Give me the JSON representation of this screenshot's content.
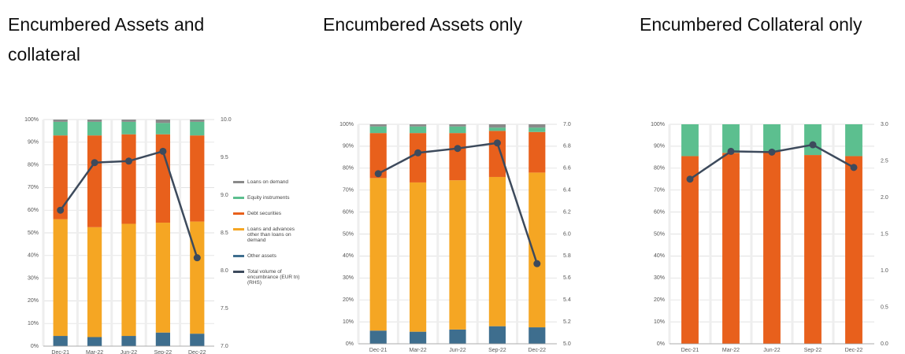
{
  "chart_data": [
    {
      "type": "bar",
      "title": "Encumbered Assets and collateral",
      "stacked": true,
      "legend": "right",
      "grid": true,
      "categories": [
        "Dec-21",
        "Mar-22",
        "Jun-22",
        "Sep-22",
        "Dec-22"
      ],
      "ylim": [
        0,
        100
      ],
      "yticks": [
        {
          "value": 0,
          "label": "0%"
        },
        {
          "value": 10,
          "label": "10%"
        },
        {
          "value": 20,
          "label": "20%"
        },
        {
          "value": 30,
          "label": "30%"
        },
        {
          "value": 40,
          "label": "40%"
        },
        {
          "value": 50,
          "label": "50%"
        },
        {
          "value": 60,
          "label": "60%"
        },
        {
          "value": 70,
          "label": "70%"
        },
        {
          "value": 80,
          "label": "80%"
        },
        {
          "value": 90,
          "label": "90%"
        },
        {
          "value": 100,
          "label": "100%"
        }
      ],
      "y2lim": [
        7,
        10
      ],
      "y2ticks": [
        {
          "value": 7,
          "label": "7.0"
        },
        {
          "value": 7.5,
          "label": "7.5"
        },
        {
          "value": 8,
          "label": "8.0"
        },
        {
          "value": 8.5,
          "label": "8.5"
        },
        {
          "value": 9,
          "label": "9.0"
        },
        {
          "value": 9.5,
          "label": "9.5"
        },
        {
          "value": 10,
          "label": "10.0"
        }
      ],
      "series": [
        {
          "name": "Other assets",
          "color": "#3e6e8e",
          "values": [
            4.5,
            4,
            4.5,
            6,
            5.5
          ]
        },
        {
          "name": "Loans and advances other than loans on demand",
          "color": "#f5a623",
          "values": [
            51.5,
            48.5,
            49.5,
            48.5,
            49.5
          ]
        },
        {
          "name": "Debt securities",
          "color": "#e8601c",
          "values": [
            37,
            40.5,
            39.5,
            39,
            38
          ]
        },
        {
          "name": "Equity instruments",
          "color": "#5cbf8f",
          "values": [
            6,
            6,
            5.5,
            5,
            6
          ]
        },
        {
          "name": "Loans on demand",
          "color": "#8a8a8a",
          "values": [
            1,
            1,
            1,
            1.5,
            1
          ]
        },
        {
          "name": "Total volume of encumbrance (EUR tn) (RHS)",
          "color": "#3d4a5c",
          "type": "line",
          "axis": "y2",
          "values": [
            8.8,
            9.43,
            9.45,
            9.58,
            8.17
          ]
        }
      ]
    },
    {
      "type": "bar",
      "title": "Encumbered Assets only",
      "stacked": true,
      "grid": true,
      "categories": [
        "Dec-21",
        "Mar-22",
        "Jun-22",
        "Sep-22",
        "Dec-22"
      ],
      "ylim": [
        0,
        100
      ],
      "yticks": [
        {
          "value": 0,
          "label": "0%"
        },
        {
          "value": 10,
          "label": "10%"
        },
        {
          "value": 20,
          "label": "20%"
        },
        {
          "value": 30,
          "label": "30%"
        },
        {
          "value": 40,
          "label": "40%"
        },
        {
          "value": 50,
          "label": "50%"
        },
        {
          "value": 60,
          "label": "60%"
        },
        {
          "value": 70,
          "label": "70%"
        },
        {
          "value": 80,
          "label": "80%"
        },
        {
          "value": 90,
          "label": "90%"
        },
        {
          "value": 100,
          "label": "100%"
        }
      ],
      "y2lim": [
        5,
        7
      ],
      "y2ticks": [
        {
          "value": 5,
          "label": "5.0"
        },
        5.2,
        5.4,
        5.6,
        5.8,
        {
          "value": 6,
          "label": "6.0"
        },
        6.2,
        6.4,
        6.6,
        6.8,
        {
          "value": 7,
          "label": "7.0"
        }
      ],
      "series": [
        {
          "color": "#3e6e8e",
          "values": [
            6,
            5.5,
            6.5,
            8,
            7.5
          ]
        },
        {
          "color": "#f5a623",
          "values": [
            69.5,
            68,
            68,
            68,
            70.5
          ]
        },
        {
          "color": "#e8601c",
          "values": [
            20.5,
            22.5,
            21.5,
            21,
            18.5
          ]
        },
        {
          "color": "#5cbf8f",
          "values": [
            3,
            3,
            3,
            1.5,
            2
          ]
        },
        {
          "color": "#8a8a8a",
          "values": [
            1,
            1,
            1,
            1.5,
            1.5
          ]
        },
        {
          "color": "#3d4a5c",
          "type": "line",
          "axis": "y2",
          "values": [
            6.55,
            6.74,
            6.78,
            6.83,
            5.73
          ]
        }
      ]
    },
    {
      "type": "bar",
      "title": "Encumbered Collateral only",
      "stacked": true,
      "grid": true,
      "categories": [
        "Dec-21",
        "Mar-22",
        "Jun-22",
        "Sep-22",
        "Dec-22"
      ],
      "ylim": [
        0,
        100
      ],
      "yticks": [
        {
          "value": 0,
          "label": "0%"
        },
        {
          "value": 10,
          "label": "10%"
        },
        {
          "value": 20,
          "label": "20%"
        },
        {
          "value": 30,
          "label": "30%"
        },
        {
          "value": 40,
          "label": "40%"
        },
        {
          "value": 50,
          "label": "50%"
        },
        {
          "value": 60,
          "label": "60%"
        },
        {
          "value": 70,
          "label": "70%"
        },
        {
          "value": 80,
          "label": "80%"
        },
        {
          "value": 90,
          "label": "90%"
        },
        {
          "value": 100,
          "label": "100%"
        }
      ],
      "y2lim": [
        0,
        3
      ],
      "y2ticks": [
        {
          "value": 0,
          "label": "0.0"
        },
        0.5,
        {
          "value": 1,
          "label": "1.0"
        },
        1.5,
        {
          "value": 2,
          "label": "2.0"
        },
        2.5,
        {
          "value": 3,
          "label": "3.0"
        }
      ],
      "series": [
        {
          "color": "#e8601c",
          "values": [
            85.5,
            87,
            87.5,
            86,
            85.5
          ]
        },
        {
          "color": "#5cbf8f",
          "values": [
            14.5,
            13,
            12.5,
            14,
            14.5
          ]
        },
        {
          "color": "#3d4a5c",
          "type": "line",
          "axis": "y2",
          "values": [
            2.25,
            2.63,
            2.62,
            2.72,
            2.41
          ]
        }
      ]
    }
  ]
}
